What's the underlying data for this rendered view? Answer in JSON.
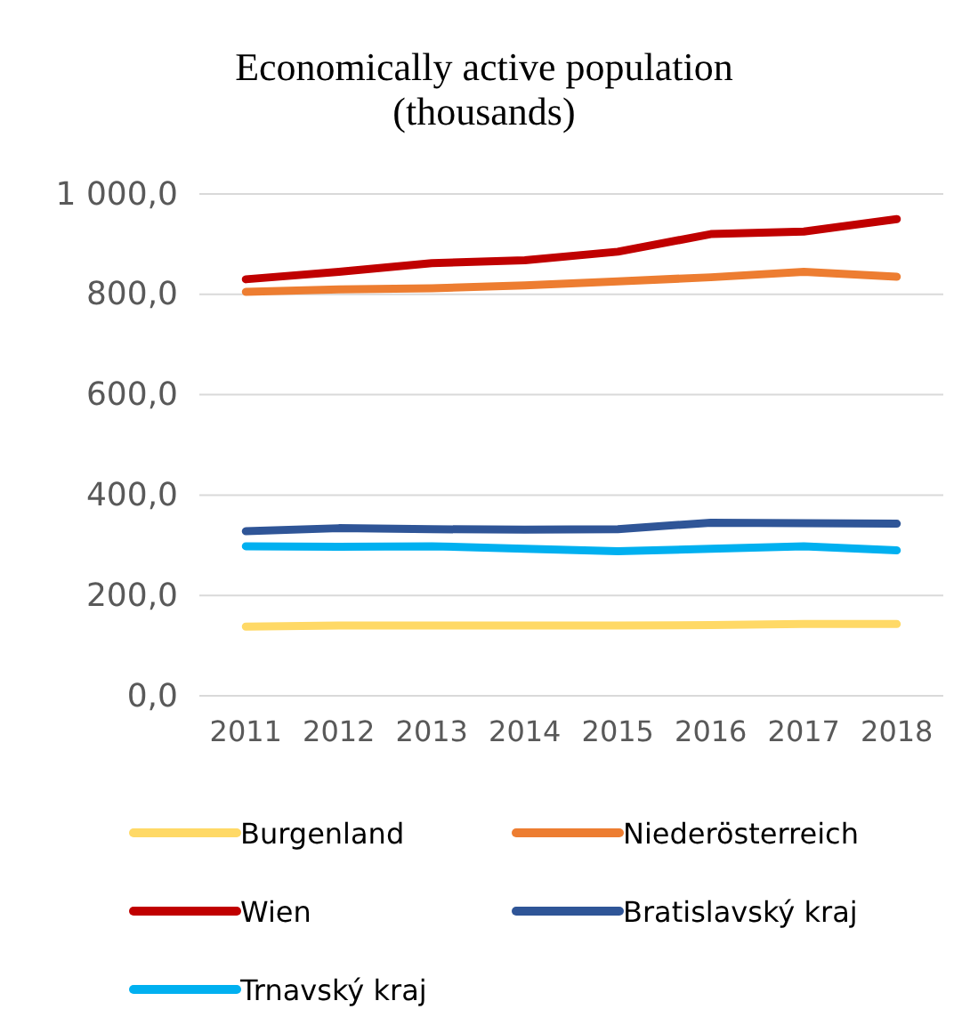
{
  "chart_data": {
    "type": "line",
    "title": "Economically active population\n(thousands)",
    "categories": [
      "2011",
      "2012",
      "2013",
      "2014",
      "2015",
      "2016",
      "2017",
      "2018"
    ],
    "series": [
      {
        "name": "Burgenland",
        "color": "#ffd966",
        "values": [
          138,
          140,
          140,
          140,
          140,
          141,
          143,
          143
        ]
      },
      {
        "name": "Niederösterreich",
        "color": "#ed7d31",
        "values": [
          805,
          810,
          812,
          818,
          826,
          834,
          845,
          835
        ]
      },
      {
        "name": "Wien",
        "color": "#c00000",
        "values": [
          830,
          845,
          862,
          868,
          885,
          920,
          925,
          950
        ]
      },
      {
        "name": "Bratislavský kraj",
        "color": "#2f5597",
        "values": [
          328,
          334,
          332,
          331,
          332,
          345,
          344,
          343
        ]
      },
      {
        "name": "Trnavský kraj",
        "color": "#00b0f0",
        "values": [
          298,
          297,
          298,
          293,
          288,
          293,
          298,
          290
        ]
      }
    ],
    "ylim": [
      0,
      1000
    ],
    "yticks": [
      {
        "value": 0,
        "label": "0,0"
      },
      {
        "value": 200,
        "label": "200,0"
      },
      {
        "value": 400,
        "label": "400,0"
      },
      {
        "value": 600,
        "label": "600,0"
      },
      {
        "value": 800,
        "label": "800,0"
      },
      {
        "value": 1000,
        "label": "1 000,0"
      }
    ],
    "grid": "y",
    "legend": "bottom",
    "marker": "none",
    "line_style": "solid"
  }
}
